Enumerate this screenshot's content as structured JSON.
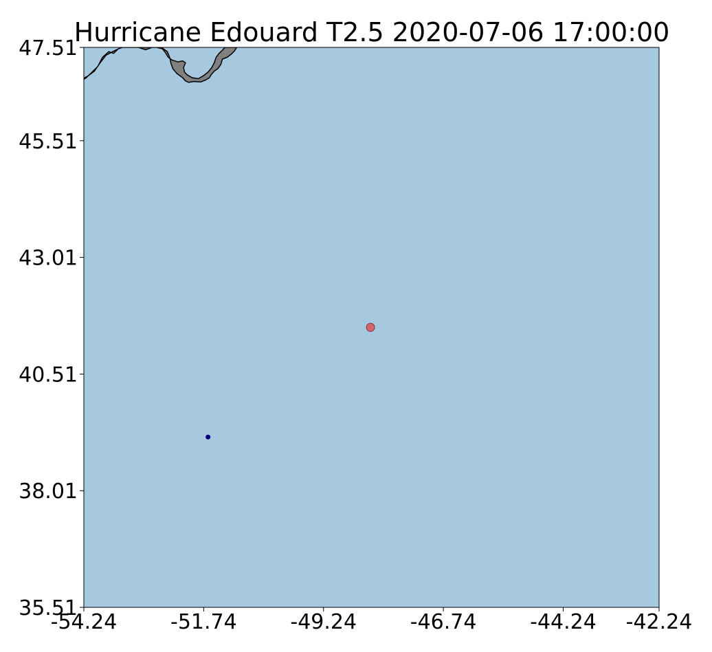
{
  "title": "Hurricane Edouard T2.5 2020-07-06 17:00:00",
  "colors": {
    "ocean": "#a7c9e0",
    "land": "#808080",
    "coastline": "#000000",
    "storm_center": "#d4646e",
    "observation_point": "#000080"
  },
  "chart_data": {
    "type": "scatter",
    "title": "Hurricane Edouard T2.5 2020-07-06 17:00:00",
    "xlabel": "",
    "ylabel": "",
    "xlim": [
      -54.24,
      -42.24
    ],
    "ylim": [
      35.51,
      47.51
    ],
    "grid": false,
    "xticks": [
      "-54.24",
      "-51.74",
      "-49.24",
      "-46.74",
      "-44.24",
      "-42.24"
    ],
    "yticks": [
      "35.51",
      "38.01",
      "40.51",
      "43.01",
      "45.51",
      "47.51"
    ],
    "points": [
      {
        "marker": "storm-center",
        "x": -48.26,
        "y": 41.51,
        "color": "#d4646e"
      },
      {
        "marker": "observation-point",
        "x": -51.65,
        "y": 39.16,
        "color": "#000080"
      }
    ],
    "land_outline": [
      [
        -54.2,
        46.85
      ],
      [
        -54.1,
        46.95
      ],
      [
        -53.95,
        47.1
      ],
      [
        -53.85,
        47.3
      ],
      [
        -53.72,
        47.42
      ],
      [
        -53.62,
        47.38
      ],
      [
        -53.52,
        47.48
      ],
      [
        -53.44,
        47.51
      ],
      [
        -53.1,
        47.51
      ],
      [
        -52.95,
        47.46
      ],
      [
        -52.82,
        47.51
      ],
      [
        -52.62,
        47.51
      ],
      [
        -52.5,
        47.42
      ],
      [
        -52.45,
        47.3
      ],
      [
        -52.42,
        47.16
      ],
      [
        -52.38,
        47.05
      ],
      [
        -52.3,
        46.95
      ],
      [
        -52.18,
        46.86
      ],
      [
        -52.12,
        46.79
      ],
      [
        -52.05,
        46.76
      ],
      [
        -51.95,
        46.78
      ],
      [
        -51.8,
        46.77
      ],
      [
        -51.7,
        46.81
      ],
      [
        -51.62,
        46.86
      ],
      [
        -51.58,
        46.93
      ],
      [
        -51.52,
        47.0
      ],
      [
        -51.44,
        47.06
      ],
      [
        -51.38,
        47.15
      ],
      [
        -51.35,
        47.26
      ],
      [
        -51.25,
        47.3
      ],
      [
        -51.17,
        47.36
      ],
      [
        -51.1,
        47.43
      ],
      [
        -51.05,
        47.51
      ],
      [
        -51.1,
        47.51
      ],
      [
        -51.3,
        47.51
      ],
      [
        -51.3,
        47.51
      ],
      [
        -51.34,
        47.46
      ],
      [
        -51.42,
        47.38
      ],
      [
        -51.48,
        47.3
      ],
      [
        -51.52,
        47.18
      ],
      [
        -51.57,
        47.08
      ],
      [
        -51.65,
        46.98
      ],
      [
        -51.75,
        46.9
      ],
      [
        -51.85,
        46.84
      ],
      [
        -51.98,
        46.86
      ],
      [
        -52.08,
        46.92
      ],
      [
        -52.14,
        46.98
      ],
      [
        -52.16,
        47.08
      ],
      [
        -52.12,
        47.18
      ],
      [
        -52.18,
        47.22
      ],
      [
        -52.28,
        47.2
      ],
      [
        -52.4,
        47.24
      ],
      [
        -52.48,
        47.3
      ],
      [
        -52.54,
        47.4
      ],
      [
        -52.6,
        47.48
      ],
      [
        -52.72,
        47.51
      ],
      [
        -52.95,
        47.51
      ],
      [
        -53.2,
        47.51
      ],
      [
        -53.45,
        47.51
      ],
      [
        -53.6,
        47.44
      ],
      [
        -53.78,
        47.34
      ],
      [
        -53.9,
        47.18
      ],
      [
        -54.02,
        47.0
      ],
      [
        -54.15,
        46.9
      ],
      [
        -54.24,
        46.85
      ],
      [
        -54.24,
        46.83
      ]
    ]
  }
}
